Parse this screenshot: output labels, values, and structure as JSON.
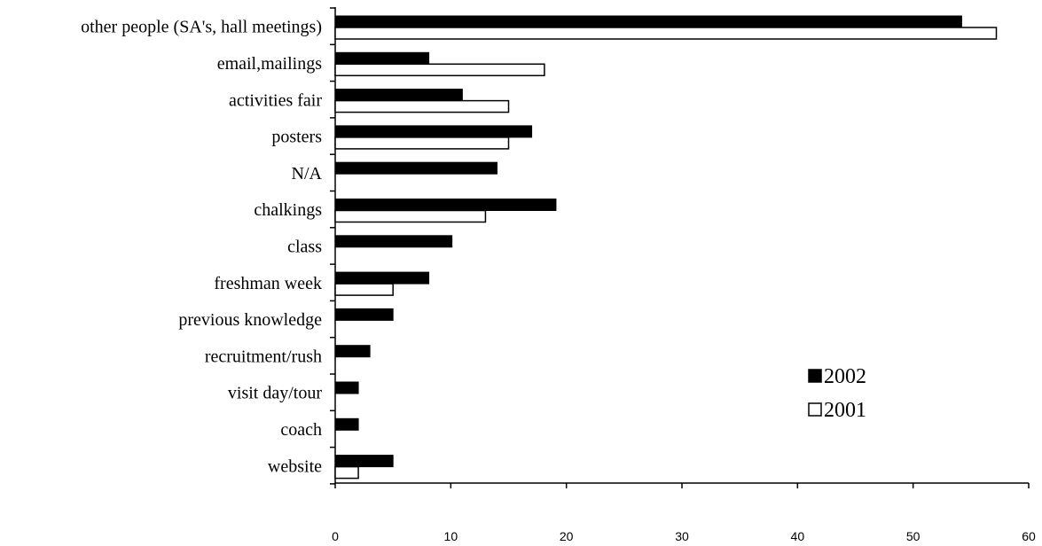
{
  "chart_data": {
    "type": "bar",
    "orientation": "horizontal",
    "categories": [
      "other people (SA's, hall meetings)",
      "email,mailings",
      "activities fair",
      "posters",
      "N/A",
      "chalkings",
      "class",
      "freshman week",
      "previous knowledge",
      "recruitment/rush",
      "visit day/tour",
      "coach",
      "website"
    ],
    "series": [
      {
        "name": "2002",
        "color": "#000000",
        "values": [
          54.2,
          8.1,
          11,
          17,
          14,
          19.1,
          10.1,
          8.1,
          5,
          3,
          2,
          2,
          5
        ]
      },
      {
        "name": "2001",
        "color": "#ffffff",
        "values": [
          57.2,
          18.1,
          15,
          15,
          0,
          13,
          0,
          5,
          0,
          0,
          0,
          0,
          2
        ]
      }
    ],
    "xlim": [
      0,
      60
    ],
    "xticks": [
      "0",
      "10",
      "20",
      "30",
      "40",
      "50",
      "60"
    ],
    "title": "",
    "xlabel": "",
    "ylabel": "",
    "grid": false,
    "legend_position": "right"
  }
}
